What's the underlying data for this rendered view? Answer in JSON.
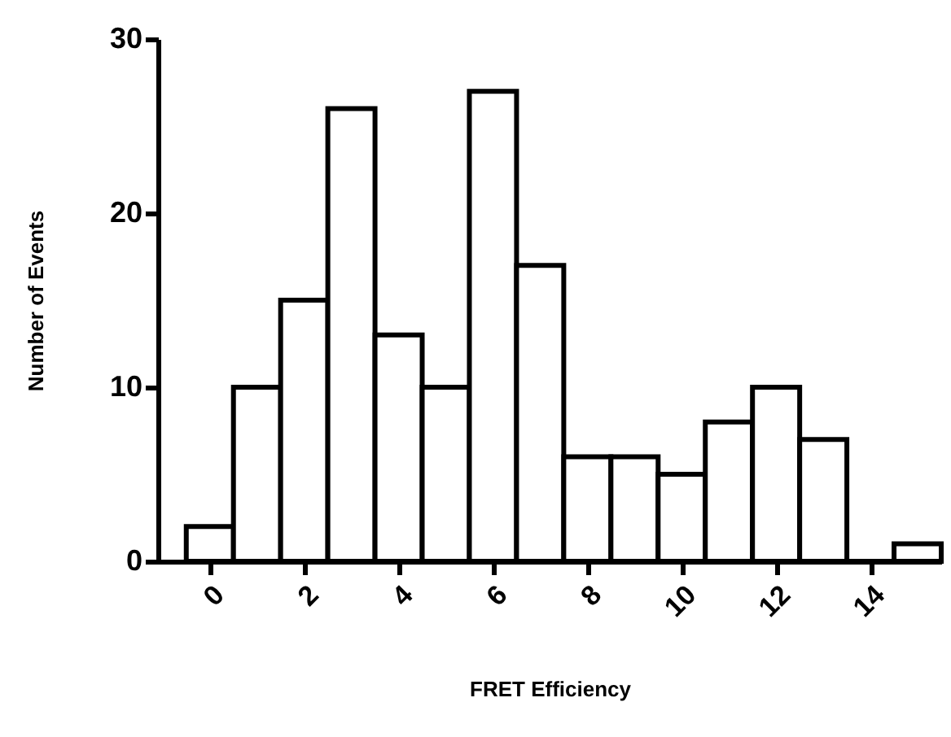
{
  "chart_data": {
    "type": "histogram",
    "xlabel": "FRET Efficiency",
    "ylabel": "Number of Events",
    "color": "#ffffff",
    "bins": [
      -0.5,
      0.5,
      1.5,
      2.5,
      3.5,
      4.5,
      5.5,
      6.5,
      7.5,
      8.5,
      9.5,
      10.5,
      11.5,
      12.5,
      13.5,
      14.5,
      15.5
    ],
    "values": [
      2,
      10,
      15,
      26,
      13,
      10,
      27,
      17,
      6,
      6,
      5,
      8,
      10,
      7,
      0,
      1
    ],
    "xlim": [
      -1.1,
      15.5
    ],
    "xticks": [
      0,
      2,
      4,
      6,
      8,
      10,
      12,
      14
    ],
    "ylim": [
      0,
      30
    ],
    "yticks": [
      0,
      10,
      20,
      30
    ],
    "grid": false
  }
}
